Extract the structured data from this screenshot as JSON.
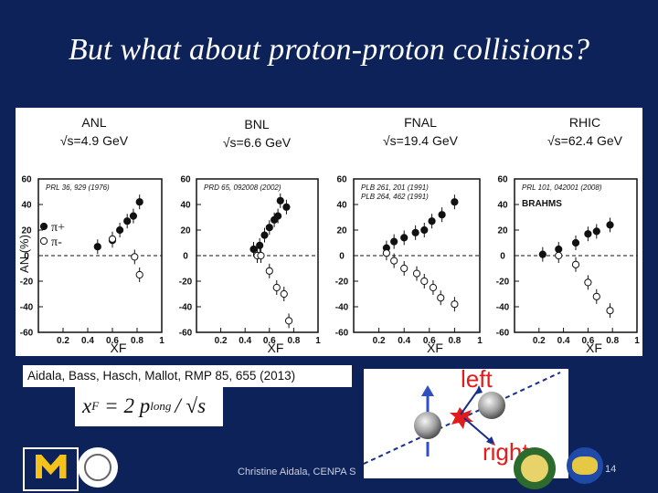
{
  "slide": {
    "title": "But what about proton-proton collisions?",
    "citation": "Aidala, Bass, Hasch, Mallot, RMP 85, 655 (2013)",
    "footer": "Christine Aidala, CENPA S",
    "page_number": "14"
  },
  "formula": {
    "lhs": "x",
    "sub": "F",
    "rhs": "= 2 p",
    "sub2": "long",
    "tail": "/ √s"
  },
  "diagram": {
    "left_label": "left",
    "right_label": "right"
  },
  "panels": [
    {
      "energy_line1": "ANL",
      "energy_line2": "√s=4.9 GeV",
      "ref": "PRL 36, 929 (1976)",
      "ref2": ""
    },
    {
      "energy_line1": "BNL",
      "energy_line2": "√s=6.6 GeV",
      "ref": "PRD 65, 092008 (2002)",
      "ref2": ""
    },
    {
      "energy_line1": "FNAL",
      "energy_line2": "√s=19.4 GeV",
      "ref": "PLB 261, 201 (1991)",
      "ref2": "PLB 264, 462 (1991)"
    },
    {
      "energy_line1": "RHIC",
      "energy_line2": "√s=62.4 GeV",
      "ref": "PRL 101, 042001 (2008)",
      "ref2": "BRAHMS"
    }
  ],
  "axes": {
    "ylabel": "AN (%)",
    "xlabel": "XF",
    "yticks": [
      "60",
      "40",
      "20",
      "0",
      "-20",
      "-40",
      "-60"
    ],
    "legend_plus": "π+",
    "legend_minus": "π-"
  },
  "chart_data": [
    {
      "type": "scatter",
      "title": "ANL √s=4.9 GeV",
      "xlim": [
        0,
        1
      ],
      "ylim": [
        -60,
        60
      ],
      "series": [
        {
          "name": "π+",
          "points": [
            [
              0.48,
              7
            ],
            [
              0.6,
              12
            ],
            [
              0.66,
              20
            ],
            [
              0.72,
              27
            ],
            [
              0.77,
              31
            ],
            [
              0.82,
              42
            ]
          ]
        },
        {
          "name": "π-",
          "points": [
            [
              0.6,
              13
            ],
            [
              0.78,
              -1
            ],
            [
              0.82,
              -15
            ]
          ]
        }
      ]
    },
    {
      "type": "scatter",
      "title": "BNL √s=6.6 GeV",
      "xlim": [
        0,
        1
      ],
      "ylim": [
        -60,
        60
      ],
      "series": [
        {
          "name": "π+",
          "points": [
            [
              0.47,
              5
            ],
            [
              0.52,
              8
            ],
            [
              0.56,
              16
            ],
            [
              0.6,
              22
            ],
            [
              0.64,
              28
            ],
            [
              0.67,
              31
            ],
            [
              0.69,
              43
            ],
            [
              0.74,
              38
            ]
          ]
        },
        {
          "name": "π-",
          "points": [
            [
              0.5,
              0
            ],
            [
              0.53,
              0
            ],
            [
              0.6,
              -12
            ],
            [
              0.66,
              -25
            ],
            [
              0.72,
              -30
            ],
            [
              0.76,
              -51
            ]
          ]
        }
      ]
    },
    {
      "type": "scatter",
      "title": "FNAL √s=19.4 GeV",
      "xlim": [
        0,
        1
      ],
      "ylim": [
        -60,
        60
      ],
      "series": [
        {
          "name": "π+",
          "points": [
            [
              0.26,
              6
            ],
            [
              0.32,
              11
            ],
            [
              0.4,
              14
            ],
            [
              0.49,
              18
            ],
            [
              0.56,
              20
            ],
            [
              0.62,
              27
            ],
            [
              0.7,
              32
            ],
            [
              0.8,
              42
            ]
          ]
        },
        {
          "name": "π-",
          "points": [
            [
              0.26,
              2
            ],
            [
              0.32,
              -4
            ],
            [
              0.4,
              -10
            ],
            [
              0.5,
              -14
            ],
            [
              0.56,
              -20
            ],
            [
              0.63,
              -25
            ],
            [
              0.69,
              -33
            ],
            [
              0.8,
              -38
            ]
          ]
        }
      ]
    },
    {
      "type": "scatter",
      "title": "RHIC √s=62.4 GeV",
      "xlim": [
        0,
        1
      ],
      "ylim": [
        -60,
        60
      ],
      "series": [
        {
          "name": "π+",
          "points": [
            [
              0.23,
              1
            ],
            [
              0.36,
              5
            ],
            [
              0.5,
              10
            ],
            [
              0.6,
              17
            ],
            [
              0.67,
              19
            ],
            [
              0.78,
              24
            ]
          ]
        },
        {
          "name": "π-",
          "points": [
            [
              0.36,
              0
            ],
            [
              0.5,
              -7
            ],
            [
              0.6,
              -21
            ],
            [
              0.67,
              -32
            ],
            [
              0.78,
              -43
            ]
          ]
        }
      ]
    }
  ]
}
